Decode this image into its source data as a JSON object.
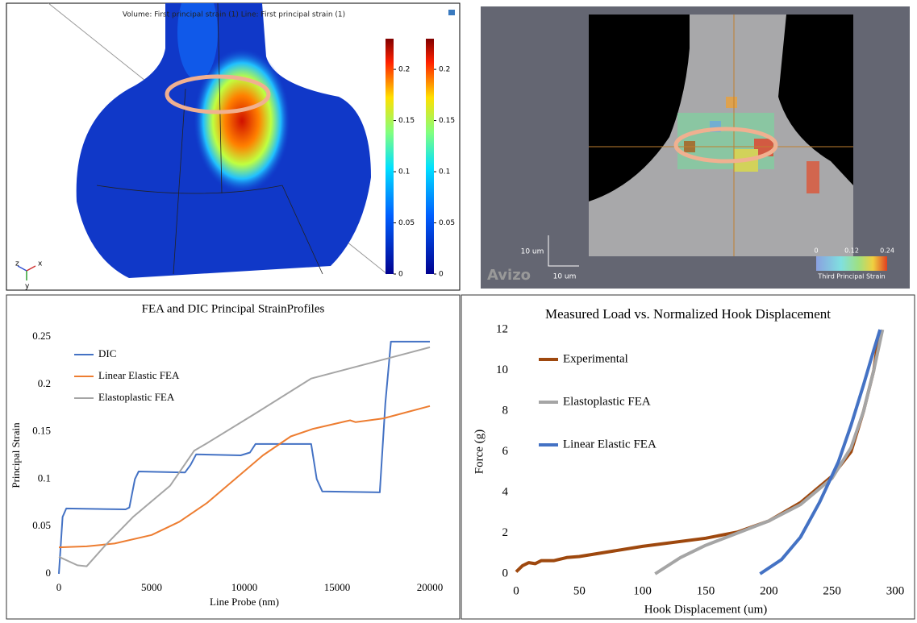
{
  "fea_image": {
    "caption": "Volume: First principal strain (1)  Line: First principal strain (1)",
    "colorbar_lim": [
      0,
      0.23
    ],
    "colorbar_ticks": [
      0,
      0.05,
      0.1,
      0.15,
      0.2
    ],
    "axes": [
      "z",
      "x",
      "y"
    ]
  },
  "dic_image": {
    "scale_labels": [
      "10 um",
      "10 um"
    ],
    "brand": "Avizo",
    "colorbar_lim": [
      0,
      0.24
    ],
    "colorbar_ticks": [
      0,
      0.12,
      0.24
    ],
    "colorbar_title": "Third Principal Strain"
  },
  "chart_data": [
    {
      "type": "line",
      "title": "FEA and DIC Principal StrainProfiles",
      "x_label": "Line Probe (nm)",
      "y_label": "Principal Strain",
      "xlim": [
        0,
        20000
      ],
      "xticks": [
        0,
        5000,
        10000,
        15000,
        20000
      ],
      "ylim": [
        0,
        0.25
      ],
      "yticks": [
        0,
        0.05,
        0.1,
        0.15,
        0.2,
        0.25
      ],
      "grid": false,
      "legend": "upper left",
      "series": [
        {
          "name": "DIC",
          "color": "#4472c4",
          "x": [
            0,
            200,
            400,
            3600,
            3800,
            4100,
            4300,
            6800,
            7100,
            7400,
            9800,
            10300,
            10600,
            13600,
            13900,
            14200,
            17300,
            17600,
            17900,
            20000
          ],
          "values": [
            0,
            0.06,
            0.069,
            0.068,
            0.07,
            0.1,
            0.108,
            0.107,
            0.115,
            0.126,
            0.125,
            0.128,
            0.137,
            0.137,
            0.1,
            0.087,
            0.086,
            0.18,
            0.245,
            0.245
          ]
        },
        {
          "name": "Linear Elastic FEA",
          "color": "#ed7d31",
          "x": [
            0,
            1500,
            3000,
            5000,
            6500,
            8000,
            9800,
            11000,
            12500,
            13700,
            15700,
            16000,
            17500,
            20000
          ],
          "values": [
            0.028,
            0.029,
            0.032,
            0.041,
            0.055,
            0.075,
            0.105,
            0.125,
            0.145,
            0.153,
            0.162,
            0.16,
            0.164,
            0.177
          ]
        },
        {
          "name": "Elastoplastic FEA",
          "color": "#a5a5a5",
          "x": [
            0,
            1000,
            1500,
            2500,
            4000,
            6000,
            7300,
            8000,
            10500,
            13600,
            20000
          ],
          "values": [
            0.018,
            0.009,
            0.008,
            0.03,
            0.06,
            0.093,
            0.13,
            0.138,
            0.168,
            0.206,
            0.239
          ]
        }
      ]
    },
    {
      "type": "line",
      "title": "Measured Load vs. Normalized Hook Displacement",
      "x_label": "Hook Displacement (um)",
      "y_label": "Force (g)",
      "xlim": [
        0,
        300
      ],
      "xticks": [
        0,
        50,
        100,
        150,
        200,
        250,
        300
      ],
      "ylim": [
        0,
        12
      ],
      "yticks": [
        0,
        2,
        4,
        6,
        8,
        10,
        12
      ],
      "grid": false,
      "legend": "upper left",
      "series": [
        {
          "name": "Experimental",
          "color": "#9e480e",
          "x": [
            0,
            5,
            10,
            15,
            20,
            30,
            40,
            50,
            100,
            150,
            175,
            200,
            225,
            250,
            265,
            275,
            283,
            287
          ],
          "values": [
            0.1,
            0.4,
            0.55,
            0.5,
            0.65,
            0.65,
            0.8,
            0.85,
            1.35,
            1.75,
            2.05,
            2.6,
            3.5,
            4.8,
            6,
            8,
            10,
            11.7
          ]
        },
        {
          "name": "Elastoplastic FEA",
          "color": "#a5a5a5",
          "x": [
            110,
            130,
            150,
            175,
            200,
            225,
            250,
            265,
            275,
            283,
            290
          ],
          "values": [
            0,
            0.8,
            1.4,
            2,
            2.6,
            3.4,
            4.7,
            6.2,
            8,
            10,
            12
          ]
        },
        {
          "name": "Linear Elastic FEA",
          "color": "#4472c4",
          "x": [
            193,
            210,
            225,
            240,
            255,
            265,
            275,
            283,
            288
          ],
          "values": [
            0,
            0.7,
            1.8,
            3.5,
            5.5,
            7.3,
            9.3,
            11,
            12
          ]
        }
      ]
    }
  ]
}
